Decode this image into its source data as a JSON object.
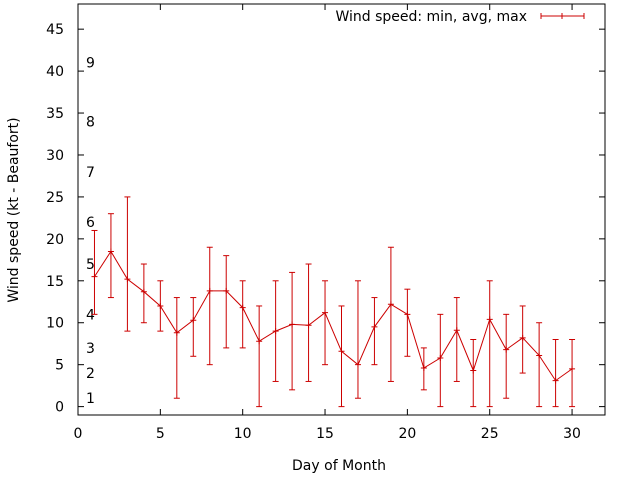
{
  "chart_data": {
    "type": "line",
    "title": "",
    "xlabel": "Day of Month",
    "ylabel": "Wind speed (kt - Beaufort)",
    "xlim": [
      0,
      32
    ],
    "ylim": [
      -1,
      48
    ],
    "xticks": [
      0,
      5,
      10,
      15,
      20,
      25,
      30
    ],
    "yticks": [
      0,
      5,
      10,
      15,
      20,
      25,
      30,
      35,
      40,
      45
    ],
    "grid": false,
    "legend_position": "top-right",
    "beaufort_labels": [
      {
        "label": "1",
        "y": 1
      },
      {
        "label": "2",
        "y": 4
      },
      {
        "label": "3",
        "y": 7
      },
      {
        "label": "4",
        "y": 11
      },
      {
        "label": "5",
        "y": 17
      },
      {
        "label": "6",
        "y": 22
      },
      {
        "label": "7",
        "y": 28
      },
      {
        "label": "8",
        "y": 34
      },
      {
        "label": "9",
        "y": 41
      }
    ],
    "series": [
      {
        "name": "Wind speed: min, avg, max",
        "color": "#cc0000",
        "x": [
          1,
          2,
          3,
          4,
          5,
          6,
          7,
          8,
          9,
          10,
          11,
          12,
          13,
          14,
          15,
          16,
          17,
          18,
          19,
          20,
          21,
          22,
          23,
          24,
          25,
          26,
          27,
          28,
          29,
          30
        ],
        "avg": [
          15.5,
          18.5,
          15.2,
          13.7,
          12,
          8.8,
          10.3,
          13.8,
          13.8,
          11.8,
          7.8,
          9,
          9.8,
          9.7,
          11.2,
          6.6,
          5,
          9.5,
          12.2,
          11,
          4.6,
          5.8,
          9.1,
          4.3,
          10.4,
          6.8,
          8.2,
          6.1,
          3.1,
          4.5
        ],
        "min": [
          11,
          13,
          9,
          10,
          9,
          1,
          6,
          5,
          7,
          7,
          0,
          3,
          2,
          3,
          5,
          0,
          1,
          5,
          3,
          6,
          2,
          0,
          3,
          0,
          0,
          1,
          4,
          0,
          0,
          0
        ],
        "max": [
          21,
          23,
          25,
          17,
          15,
          13,
          13,
          19,
          18,
          15,
          12,
          15,
          16,
          17,
          15,
          12,
          15,
          13,
          19,
          14,
          7,
          11,
          13,
          8,
          15,
          11,
          12,
          10,
          8,
          8
        ]
      }
    ]
  }
}
